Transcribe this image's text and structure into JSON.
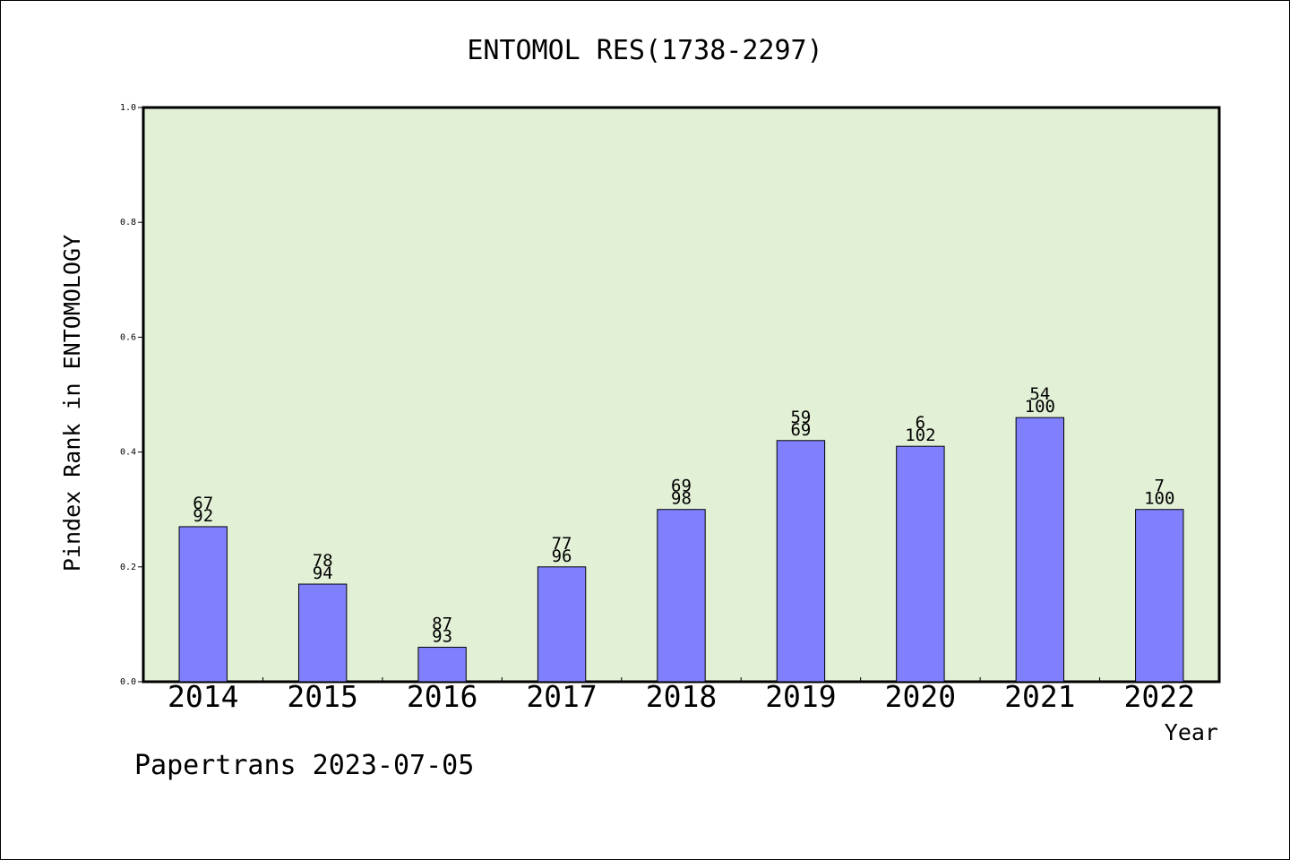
{
  "chart_data": {
    "type": "bar",
    "title": "ENTOMOL RES(1738-2297)",
    "xlabel": "Year",
    "ylabel": "Pindex Rank in ENTOMOLOGY",
    "ylim": [
      0,
      1.0
    ],
    "yticks": [
      "0.0",
      "0.2",
      "0.4",
      "0.6",
      "0.8",
      "1.0"
    ],
    "categories": [
      "2014",
      "2015",
      "2016",
      "2017",
      "2018",
      "2019",
      "2020",
      "2021",
      "2022"
    ],
    "values": [
      0.27,
      0.17,
      0.06,
      0.2,
      0.3,
      0.42,
      0.41,
      0.46,
      0.3
    ],
    "label_top": [
      "67",
      "78",
      "87",
      "77",
      "69",
      "59",
      "6",
      "54",
      "7"
    ],
    "label_bottom": [
      "92",
      "94",
      "93",
      "96",
      "98",
      "69",
      "102",
      "100",
      "100"
    ],
    "grid": false,
    "colors": {
      "plot_background": "#e2f0d6",
      "bar": "#8080ff",
      "axis": "#000000"
    }
  },
  "footer": {
    "watermark": "Papertrans 2023-07-05"
  }
}
